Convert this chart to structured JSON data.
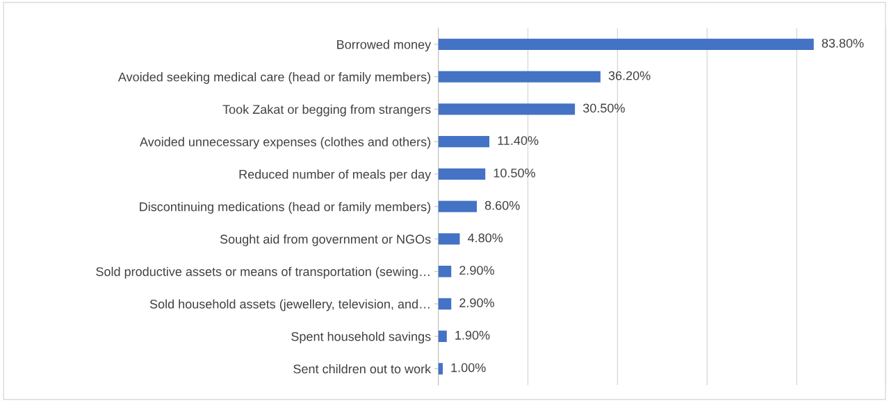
{
  "chart_data": {
    "type": "bar",
    "orientation": "horizontal",
    "categories": [
      "Borrowed money",
      "Avoided seeking medical care (head or family members)",
      "Took Zakat or begging from strangers",
      "Avoided unnecessary expenses (clothes and others)",
      "Reduced number of meals per day",
      "Discontinuing medications (head or family members)",
      "Sought aid from government or NGOs",
      "Sold productive assets or means of transportation (sewing…",
      "Sold household assets (jewellery, television, and…",
      "Spent household savings",
      "Sent children out to work"
    ],
    "values": [
      83.8,
      36.2,
      30.5,
      11.4,
      10.5,
      8.6,
      4.8,
      2.9,
      2.9,
      1.9,
      1.0
    ],
    "value_labels": [
      "83.80%",
      "36.20%",
      "30.50%",
      "11.40%",
      "10.50%",
      "8.60%",
      "4.80%",
      "2.90%",
      "2.90%",
      "1.90%",
      "1.00%"
    ],
    "color": "#4472c4",
    "xlim": [
      0,
      100
    ],
    "xticks": [
      {
        "value": 0,
        "label": null
      },
      {
        "value": 20,
        "label": null
      },
      {
        "value": 40,
        "label": null
      },
      {
        "value": 60,
        "label": null
      },
      {
        "value": 80,
        "label": null
      },
      {
        "value": 100,
        "label": null
      }
    ],
    "tick_labels": "y",
    "grid": "x"
  }
}
